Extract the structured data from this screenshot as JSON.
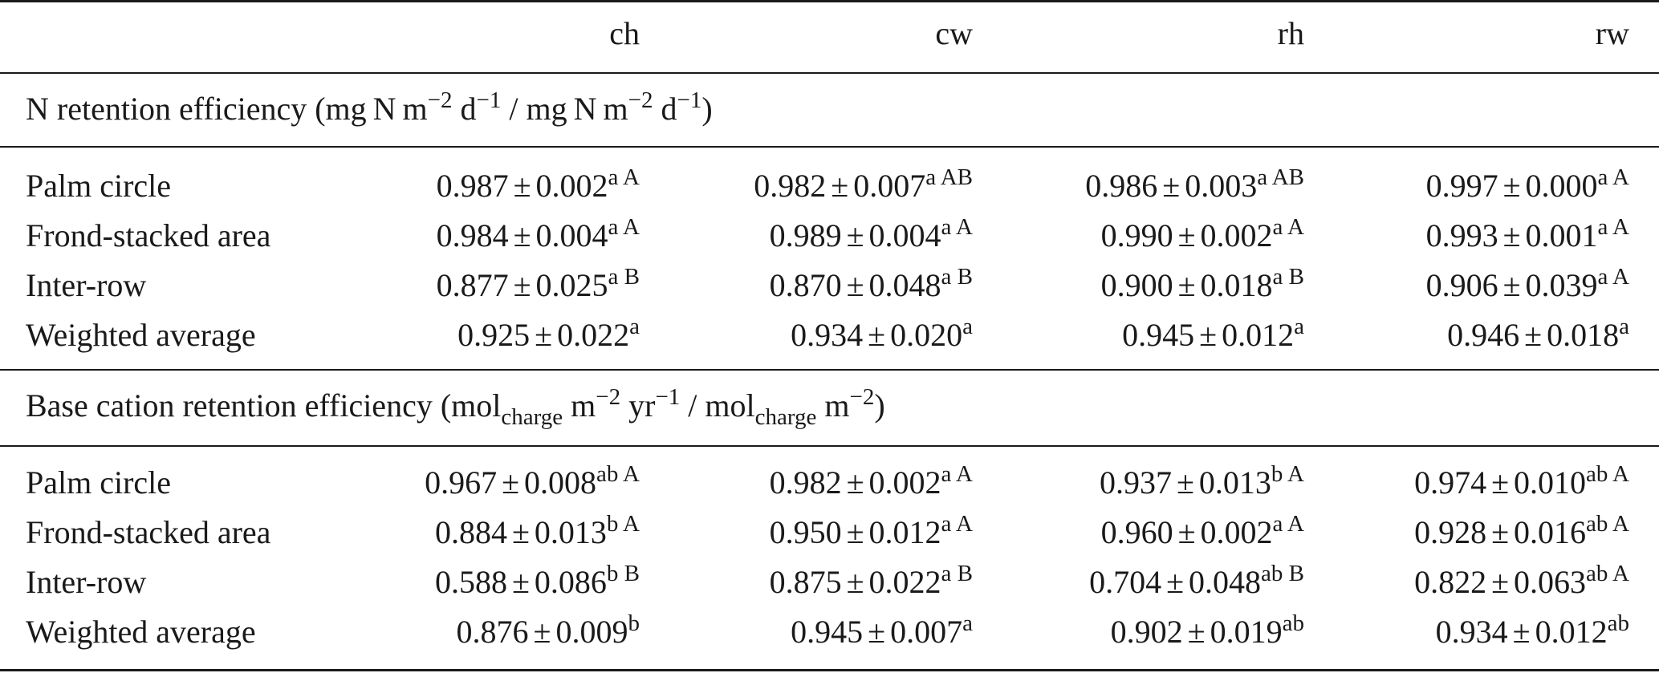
{
  "columns": [
    "ch",
    "cw",
    "rh",
    "rw"
  ],
  "sections": [
    {
      "title_parts": [
        "N retention efficiency (mg N m",
        "−2",
        " d",
        "−1",
        " / mg N m",
        "−2",
        " d",
        "−1",
        ")"
      ],
      "rows": [
        {
          "label": "Palm circle",
          "cells": [
            {
              "mean": "0.987",
              "err": "0.002",
              "sup": "a A"
            },
            {
              "mean": "0.982",
              "err": "0.007",
              "sup": "a AB"
            },
            {
              "mean": "0.986",
              "err": "0.003",
              "sup": "a AB"
            },
            {
              "mean": "0.997",
              "err": "0.000",
              "sup": "a A"
            }
          ]
        },
        {
          "label": "Frond-stacked area",
          "cells": [
            {
              "mean": "0.984",
              "err": "0.004",
              "sup": "a A"
            },
            {
              "mean": "0.989",
              "err": "0.004",
              "sup": "a A"
            },
            {
              "mean": "0.990",
              "err": "0.002",
              "sup": "a A"
            },
            {
              "mean": "0.993",
              "err": "0.001",
              "sup": "a A"
            }
          ]
        },
        {
          "label": "Inter-row",
          "cells": [
            {
              "mean": "0.877",
              "err": "0.025",
              "sup": "a B"
            },
            {
              "mean": "0.870",
              "err": "0.048",
              "sup": "a B"
            },
            {
              "mean": "0.900",
              "err": "0.018",
              "sup": "a B"
            },
            {
              "mean": "0.906",
              "err": "0.039",
              "sup": "a A"
            }
          ]
        },
        {
          "label": "Weighted average",
          "cells": [
            {
              "mean": "0.925",
              "err": "0.022",
              "sup": "a"
            },
            {
              "mean": "0.934",
              "err": "0.020",
              "sup": "a"
            },
            {
              "mean": "0.945",
              "err": "0.012",
              "sup": "a"
            },
            {
              "mean": "0.946",
              "err": "0.018",
              "sup": "a"
            }
          ]
        }
      ]
    },
    {
      "title_parts": [
        "Base cation retention efficiency (mol",
        "charge",
        " m",
        "−2",
        " yr",
        "−1",
        " / mol",
        "charge",
        " m",
        "−2",
        ")"
      ],
      "rows": [
        {
          "label": "Palm circle",
          "cells": [
            {
              "mean": "0.967",
              "err": "0.008",
              "sup": "ab A"
            },
            {
              "mean": "0.982",
              "err": "0.002",
              "sup": "a A"
            },
            {
              "mean": "0.937",
              "err": "0.013",
              "sup": "b A"
            },
            {
              "mean": "0.974",
              "err": "0.010",
              "sup": "ab A"
            }
          ]
        },
        {
          "label": "Frond-stacked area",
          "cells": [
            {
              "mean": "0.884",
              "err": "0.013",
              "sup": "b A"
            },
            {
              "mean": "0.950",
              "err": "0.012",
              "sup": "a A"
            },
            {
              "mean": "0.960",
              "err": "0.002",
              "sup": "a A"
            },
            {
              "mean": "0.928",
              "err": "0.016",
              "sup": "ab A"
            }
          ]
        },
        {
          "label": "Inter-row",
          "cells": [
            {
              "mean": "0.588",
              "err": "0.086",
              "sup": "b B"
            },
            {
              "mean": "0.875",
              "err": "0.022",
              "sup": "a B"
            },
            {
              "mean": "0.704",
              "err": "0.048",
              "sup": "ab B"
            },
            {
              "mean": "0.822",
              "err": "0.063",
              "sup": "ab A"
            }
          ]
        },
        {
          "label": "Weighted average",
          "cells": [
            {
              "mean": "0.876",
              "err": "0.009",
              "sup": "b"
            },
            {
              "mean": "0.945",
              "err": "0.007",
              "sup": "a"
            },
            {
              "mean": "0.902",
              "err": "0.019",
              "sup": "ab"
            },
            {
              "mean": "0.934",
              "err": "0.012",
              "sup": "ab"
            }
          ]
        }
      ]
    }
  ]
}
